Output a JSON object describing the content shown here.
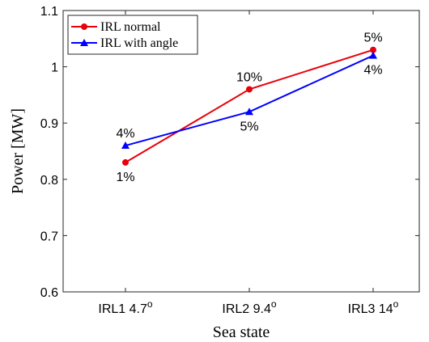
{
  "chart_data": {
    "type": "line",
    "title": "",
    "xlabel": "Sea state",
    "ylabel": "Power [MW]",
    "categories": [
      {
        "label": "IRL1 4.7",
        "sup": "o"
      },
      {
        "label": "IRL2 9.4",
        "sup": "o"
      },
      {
        "label": "IRL3 14",
        "sup": "o"
      }
    ],
    "ylim": [
      0.6,
      1.1
    ],
    "yticks": [
      "0.6",
      "0.7",
      "0.8",
      "0.9",
      "1",
      "1.1"
    ],
    "grid": false,
    "legend_position": "top-left",
    "series": [
      {
        "name": "IRL normal",
        "color": "#e8000b",
        "marker": "circle",
        "values": [
          0.83,
          0.96,
          1.03
        ],
        "labels": [
          "1%",
          "10%",
          "5%"
        ],
        "label_position": [
          "below",
          "above",
          "above"
        ]
      },
      {
        "name": "IRL with angle",
        "color": "#0000ff",
        "marker": "triangle",
        "values": [
          0.86,
          0.92,
          1.02
        ],
        "labels": [
          "4%",
          "5%",
          "4%"
        ],
        "label_position": [
          "above",
          "below",
          "below"
        ]
      }
    ]
  }
}
